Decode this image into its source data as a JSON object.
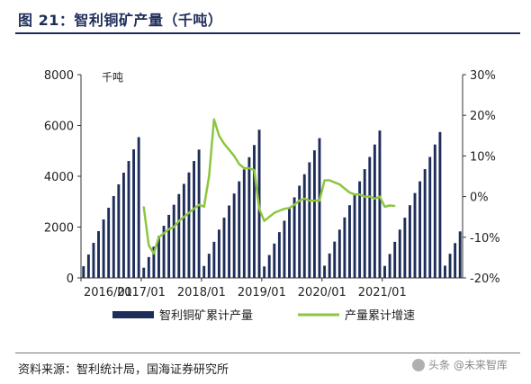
{
  "figure": {
    "title": "图 21：智利铜矿产量（千吨）",
    "source": "资料来源：智利统计局，国海证券研究所",
    "watermark": "头条 @未来智库"
  },
  "chart_data": {
    "type": "bar",
    "unit_label": "千吨",
    "x_ticks": [
      "2016/01",
      "2017/01",
      "2018/01",
      "2019/01",
      "2020/01",
      "2021/01"
    ],
    "y_left": {
      "lim": [
        0,
        8000
      ],
      "ticks": [
        "0",
        "2000",
        "4000",
        "6000",
        "8000"
      ]
    },
    "y_right": {
      "lim": [
        -20,
        30
      ],
      "ticks": [
        "-20%",
        "-10%",
        "0%",
        "10%",
        "20%",
        "30%"
      ]
    },
    "legend": {
      "placement": "bottom",
      "bar_name": "智利铜矿累计产量",
      "line_name": "产量累计增速"
    },
    "colors": {
      "bar": "#1f2d5a",
      "line": "#8dc63f",
      "axis": "#333333"
    },
    "series": [
      {
        "name": "智利铜矿累计产量",
        "kind": "bar",
        "values": [
          460,
          920,
          1380,
          1840,
          2300,
          2760,
          3220,
          3680,
          4140,
          4600,
          5060,
          5540,
          400,
          820,
          1230,
          1650,
          2050,
          2480,
          2880,
          3300,
          3700,
          4150,
          4600,
          5050,
          470,
          950,
          1420,
          1900,
          2370,
          2850,
          3320,
          3800,
          4270,
          4750,
          5230,
          5830,
          450,
          900,
          1350,
          1800,
          2250,
          2720,
          3170,
          3630,
          4080,
          4550,
          5020,
          5500,
          480,
          960,
          1430,
          1900,
          2380,
          2860,
          3330,
          3800,
          4280,
          4760,
          5250,
          5800,
          470,
          940,
          1420,
          1900,
          2370,
          2860,
          3340,
          3800,
          4280,
          4760,
          5250,
          5740,
          480,
          950,
          1370,
          1830
        ]
      },
      {
        "name": "产量累计增速",
        "kind": "line",
        "start_index": 12,
        "values": [
          -2.5,
          -12,
          -14,
          -10,
          -9,
          -8,
          -7.5,
          -6,
          -5,
          -4,
          -3,
          -2,
          -2.5,
          5,
          19,
          15,
          13,
          11.5,
          10,
          8,
          7,
          7,
          6.5,
          -3,
          -6,
          -5,
          -4,
          -3.5,
          -3,
          -2.8,
          -2,
          -1,
          -0.5,
          -1,
          -1,
          -1,
          4,
          4,
          3.5,
          3,
          2,
          1,
          0.5,
          0.5,
          0,
          0,
          -0.5,
          0,
          -2.5,
          -2.2,
          -2.3
        ]
      }
    ]
  }
}
